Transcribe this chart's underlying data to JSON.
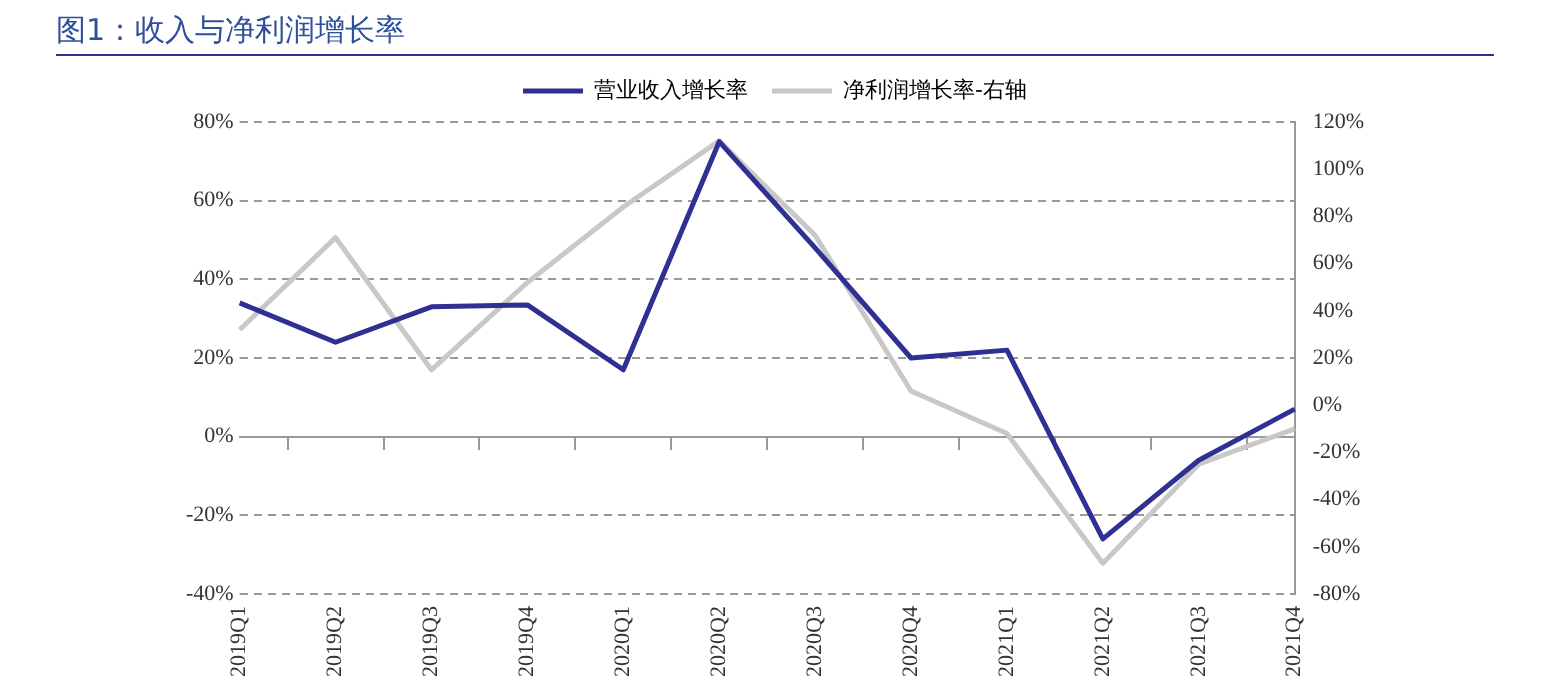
{
  "chart_data": {
    "type": "line",
    "title": "图1：收入与净利润增长率",
    "categories": [
      "2019Q1",
      "2019Q2",
      "2019Q3",
      "2019Q4",
      "2020Q1",
      "2020Q2",
      "2020Q3",
      "2020Q4",
      "2021Q1",
      "2021Q2",
      "2021Q3",
      "2021Q4"
    ],
    "series": [
      {
        "name": "营业收入增长率",
        "color": "#2e3192",
        "values": [
          34,
          24,
          33,
          33.5,
          17,
          75,
          48,
          20,
          22,
          -26,
          -6,
          7
        ]
      },
      {
        "name": "净利润增长率-右轴",
        "color": "#c8c8c8",
        "axis": "y2",
        "values": [
          32,
          71,
          15,
          52,
          84,
          112,
          72,
          6,
          -12,
          -67,
          -25,
          -10
        ]
      }
    ],
    "ylim": [
      -40,
      80
    ],
    "yticks": [
      {
        "value": -40,
        "label": "-40%"
      },
      {
        "value": -20,
        "label": "-20%"
      },
      {
        "value": 0,
        "label": "0%"
      },
      {
        "value": 20,
        "label": "20%"
      },
      {
        "value": 40,
        "label": "40%"
      },
      {
        "value": 60,
        "label": "60%"
      },
      {
        "value": 80,
        "label": "80%"
      }
    ],
    "y2lim": [
      -80,
      120
    ],
    "y2ticks": [
      {
        "value": -80,
        "label": "-80%"
      },
      {
        "value": -60,
        "label": "-60%"
      },
      {
        "value": -40,
        "label": "-40%"
      },
      {
        "value": -20,
        "label": "-20%"
      },
      {
        "value": 0,
        "label": "0%"
      },
      {
        "value": 20,
        "label": "20%"
      },
      {
        "value": 40,
        "label": "40%"
      },
      {
        "value": 60,
        "label": "60%"
      },
      {
        "value": 80,
        "label": "80%"
      },
      {
        "value": 100,
        "label": "100%"
      },
      {
        "value": 120,
        "label": "120%"
      }
    ],
    "grid": "y",
    "legend": "top",
    "marker": "none",
    "line_style": "solid"
  }
}
